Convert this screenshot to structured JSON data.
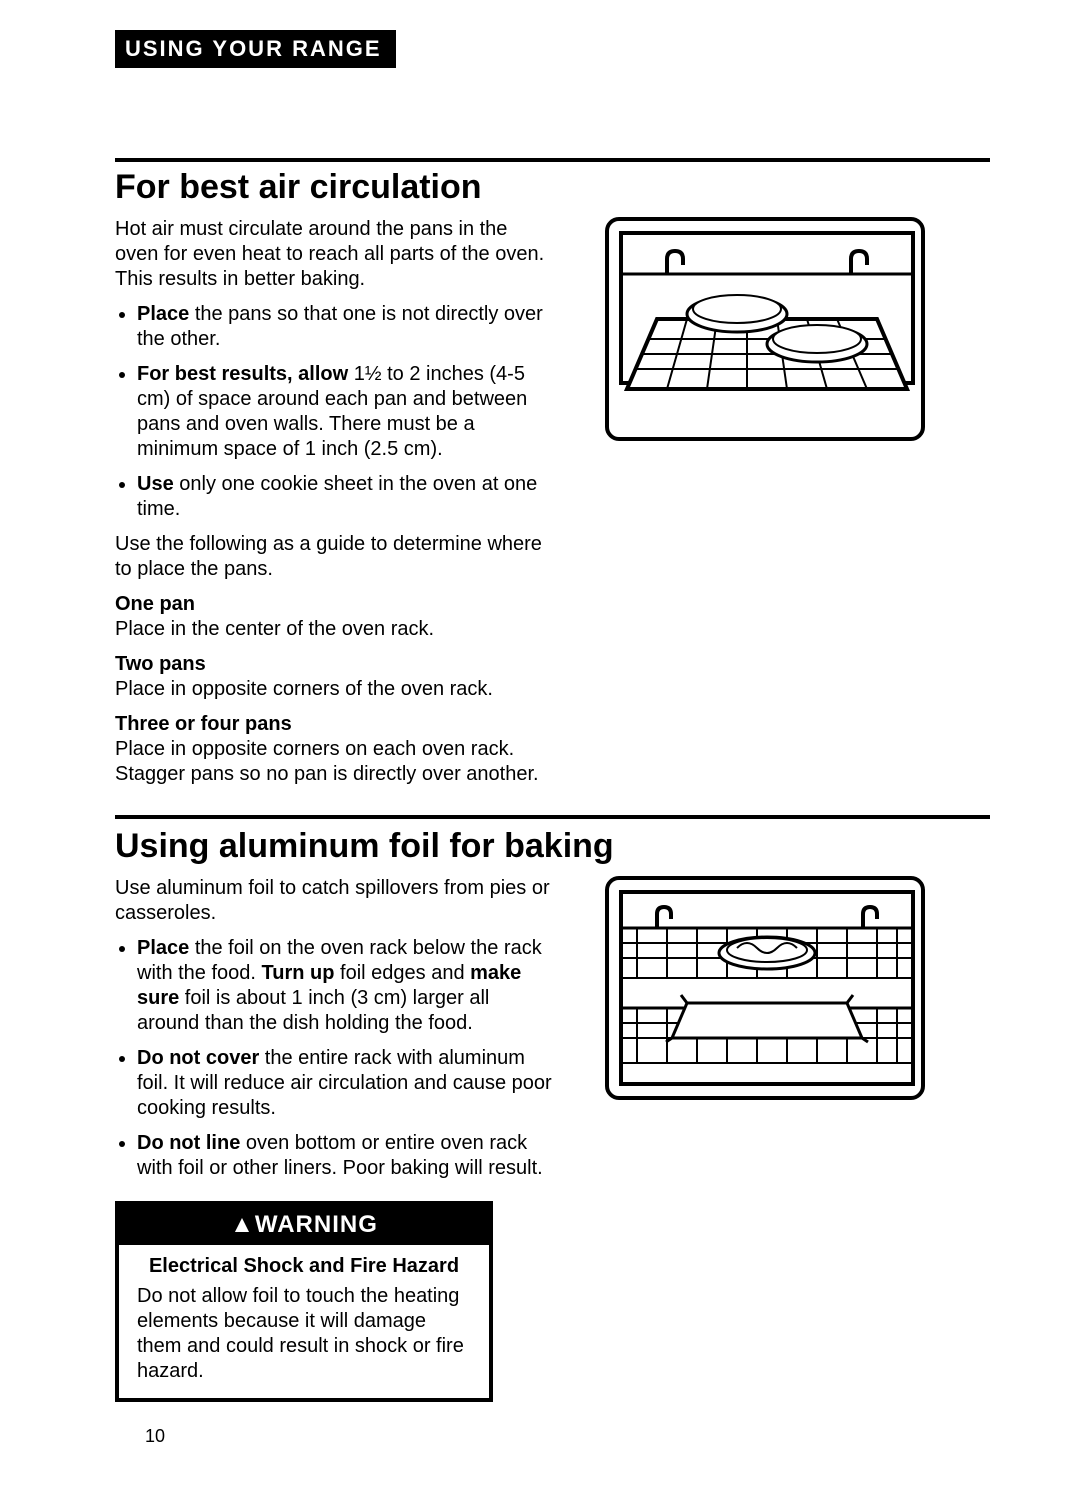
{
  "section_tag": "USING YOUR RANGE",
  "section1": {
    "title": "For best air circulation",
    "intro": "Hot air must circulate around the pans in the oven for even heat to reach all parts of the oven. This results in better baking.",
    "bullets": [
      {
        "lead": "Place",
        "rest": " the pans so that one is not directly over the other."
      },
      {
        "lead": "For best results, allow",
        "rest": " 1½ to 2 inches (4-5 cm) of space around each pan and between pans and oven walls. There must be a minimum space of 1 inch (2.5 cm)."
      },
      {
        "lead": "Use",
        "rest": " only one cookie sheet in the oven at one time."
      }
    ],
    "guide_intro": "Use the following as a guide to determine where to place the pans.",
    "groups": [
      {
        "title": "One pan",
        "text": "Place in the center of the oven rack."
      },
      {
        "title": "Two pans",
        "text": "Place in opposite corners of the oven rack."
      },
      {
        "title": "Three or four pans",
        "text": "Place in opposite corners on each oven rack. Stagger pans so no pan is directly over another."
      }
    ]
  },
  "section2": {
    "title": "Using aluminum foil for baking",
    "intro": "Use aluminum foil to catch spillovers from pies or casseroles.",
    "bullets": [
      {
        "html": "<b>Place</b> the foil on the oven rack below the rack with the food. <b>Turn up</b> foil edges and <b>make sure</b> foil is about 1 inch (3 cm) larger all around than the dish holding the food."
      },
      {
        "html": "<b>Do not cover</b> the entire rack with aluminum foil. It will reduce air circulation and cause poor cooking results."
      },
      {
        "html": "<b>Do not line</b> oven bottom or entire oven rack with foil or other liners. Poor baking will result."
      }
    ]
  },
  "warning": {
    "head": "WARNING",
    "sub": "Electrical Shock and Fire Hazard",
    "text": "Do not allow foil to touch the heating elements because it will damage them and could result in shock or fire hazard."
  },
  "page_number": "10"
}
